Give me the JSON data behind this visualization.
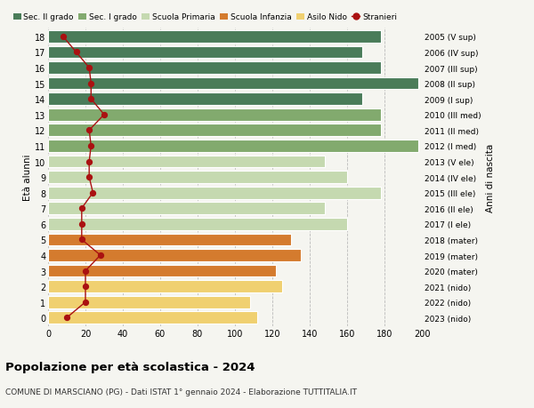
{
  "ages": [
    18,
    17,
    16,
    15,
    14,
    13,
    12,
    11,
    10,
    9,
    8,
    7,
    6,
    5,
    4,
    3,
    2,
    1,
    0
  ],
  "right_labels": [
    "2005 (V sup)",
    "2006 (IV sup)",
    "2007 (III sup)",
    "2008 (II sup)",
    "2009 (I sup)",
    "2010 (III med)",
    "2011 (II med)",
    "2012 (I med)",
    "2013 (V ele)",
    "2014 (IV ele)",
    "2015 (III ele)",
    "2016 (II ele)",
    "2017 (I ele)",
    "2018 (mater)",
    "2019 (mater)",
    "2020 (mater)",
    "2021 (nido)",
    "2022 (nido)",
    "2023 (nido)"
  ],
  "bar_values": [
    178,
    168,
    178,
    198,
    168,
    178,
    178,
    198,
    148,
    160,
    178,
    148,
    160,
    130,
    135,
    122,
    125,
    108,
    112
  ],
  "bar_colors": [
    "#4a7c59",
    "#4a7c59",
    "#4a7c59",
    "#4a7c59",
    "#4a7c59",
    "#82aa6e",
    "#82aa6e",
    "#82aa6e",
    "#c5d9b0",
    "#c5d9b0",
    "#c5d9b0",
    "#c5d9b0",
    "#c5d9b0",
    "#d47b2e",
    "#d47b2e",
    "#d47b2e",
    "#f0d070",
    "#f0d070",
    "#f0d070"
  ],
  "stranieri_values": [
    8,
    15,
    22,
    23,
    23,
    30,
    22,
    23,
    22,
    22,
    24,
    18,
    18,
    18,
    28,
    20,
    20,
    20,
    10
  ],
  "stranieri_color": "#aa1111",
  "title": "Popolazione per età scolastica - 2024",
  "subtitle": "COMUNE DI MARSCIANO (PG) - Dati ISTAT 1° gennaio 2024 - Elaborazione TUTTITALIA.IT",
  "ylabel": "Età alunni",
  "right_ylabel": "Anni di nascita",
  "xlim": [
    0,
    200
  ],
  "xticks": [
    0,
    20,
    40,
    60,
    80,
    100,
    120,
    140,
    160,
    180,
    200
  ],
  "legend_items": [
    {
      "label": "Sec. II grado",
      "color": "#4a7c59"
    },
    {
      "label": "Sec. I grado",
      "color": "#82aa6e"
    },
    {
      "label": "Scuola Primaria",
      "color": "#c5d9b0"
    },
    {
      "label": "Scuola Infanzia",
      "color": "#d47b2e"
    },
    {
      "label": "Asilo Nido",
      "color": "#f0d070"
    },
    {
      "label": "Stranieri",
      "color": "#aa1111"
    }
  ],
  "bg_color": "#f5f5f0",
  "bar_height": 0.78
}
